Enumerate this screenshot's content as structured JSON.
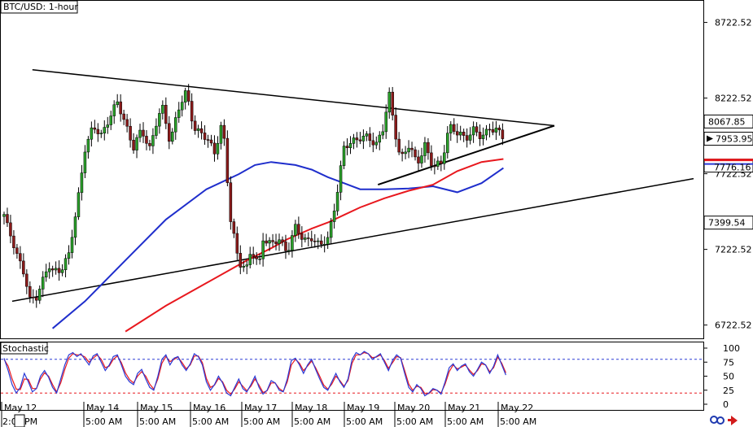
{
  "chart_data": {
    "type": "line",
    "title": "BTC/USD: 1-hour",
    "indicator_label": "Stochastic",
    "price_axis": {
      "ticks": [
        6722.52,
        7222.52,
        7722.52,
        8222.52,
        8722.52
      ],
      "range": [
        6640,
        8860
      ]
    },
    "price_badges": [
      {
        "value": "8067.85",
        "style": "white"
      },
      {
        "value": "7953.95",
        "style": "current"
      },
      {
        "value": "7776.16",
        "style": "red"
      },
      {
        "value": "7399.54",
        "style": "white"
      }
    ],
    "stoch_axis": {
      "ticks": [
        100,
        75,
        50,
        25,
        0
      ],
      "levels": [
        80,
        20
      ]
    },
    "x_labels": {
      "dates": [
        "May 12",
        "May 14",
        "May 15",
        "May 16",
        "May 17",
        "May 18",
        "May 19",
        "May 20",
        "May 21",
        "May 22"
      ],
      "times": [
        "2:0",
        "PM",
        "5:00 AM",
        "5:00 AM",
        "5:00 AM",
        "5:00 AM",
        "5:00 AM",
        "5:00 AM",
        "5:00 AM",
        "5:00 AM",
        "5:00 AM"
      ]
    },
    "series": [
      {
        "name": "",
        "kind": "close",
        "t": [
          0,
          5,
          10,
          17,
          25,
          32,
          40,
          45,
          50,
          55,
          60,
          70,
          80,
          90,
          100,
          110,
          120,
          130,
          140,
          150,
          160,
          170,
          180,
          190,
          196,
          205,
          215,
          225,
          235,
          245,
          250,
          260,
          270,
          280,
          290,
          300,
          305,
          310,
          315,
          320,
          330,
          340,
          350,
          360,
          370,
          380,
          390,
          400,
          410,
          420,
          430,
          440,
          450,
          460,
          470,
          475,
          480,
          485,
          490,
          500,
          510,
          520,
          530,
          540,
          550,
          560,
          570,
          580,
          590,
          600,
          610,
          617
        ],
        "price": [
          7440,
          7350,
          7300,
          7180,
          7050,
          6880,
          6920,
          6990,
          7040,
          7110,
          7070,
          7100,
          7180,
          7500,
          7900,
          8020,
          7980,
          8100,
          8180,
          8060,
          7900,
          8000,
          7900,
          8100,
          8140,
          7940,
          8150,
          8250,
          8030,
          7990,
          7940,
          7870,
          8080,
          7400,
          7150,
          7100,
          7210,
          7160,
          7110,
          7310,
          7250,
          7280,
          7220,
          7360,
          7280,
          7310,
          7230,
          7300,
          7550,
          7880,
          7950,
          7960,
          7950,
          7930,
          8040,
          8260,
          8100,
          7950,
          7830,
          7900,
          7790,
          7920,
          7750,
          7800,
          8040,
          7980,
          7970,
          8010,
          7950,
          8040,
          8000,
          7953
        ]
      },
      {
        "name": "",
        "kind": "ma100",
        "color": "#1f2ecc",
        "t": [
          60,
          100,
          150,
          200,
          250,
          290,
          310,
          330,
          360,
          380,
          400,
          420,
          440,
          470,
          500,
          530,
          560,
          590,
          617
        ],
        "price": [
          6700,
          6880,
          7150,
          7420,
          7620,
          7720,
          7780,
          7800,
          7780,
          7750,
          7700,
          7660,
          7620,
          7620,
          7625,
          7640,
          7600,
          7660,
          7760
        ]
      },
      {
        "name": "",
        "kind": "ma200",
        "color": "#e8181e",
        "t": [
          150,
          200,
          250,
          300,
          330,
          350,
          380,
          400,
          420,
          440,
          470,
          500,
          530,
          560,
          590,
          617
        ],
        "price": [
          6680,
          6850,
          7000,
          7150,
          7230,
          7290,
          7360,
          7400,
          7450,
          7500,
          7560,
          7610,
          7650,
          7740,
          7800,
          7820
        ]
      }
    ],
    "stochastic": {
      "t": [
        0,
        5,
        10,
        15,
        20,
        25,
        30,
        35,
        40,
        45,
        50,
        55,
        60,
        65,
        70,
        75,
        80,
        85,
        90,
        95,
        100,
        105,
        110,
        115,
        120,
        125,
        130,
        135,
        140,
        145,
        150,
        155,
        160,
        165,
        170,
        175,
        180,
        185,
        190,
        195,
        200,
        205,
        210,
        215,
        220,
        225,
        230,
        235,
        240,
        245,
        250,
        255,
        260,
        265,
        270,
        275,
        280,
        285,
        290,
        295,
        300,
        305,
        310,
        315,
        320,
        325,
        330,
        335,
        340,
        345,
        350,
        355,
        360,
        365,
        370,
        375,
        380,
        385,
        390,
        395,
        400,
        405,
        410,
        415,
        420,
        425,
        430,
        435,
        440,
        445,
        450,
        455,
        460,
        465,
        470,
        475,
        480,
        485,
        490,
        495,
        500,
        505,
        510,
        515,
        520,
        525,
        530,
        535,
        540,
        545,
        550,
        555,
        560,
        565,
        570,
        575,
        580,
        585,
        590,
        595,
        600,
        605,
        610,
        615,
        620
      ],
      "k": [
        82,
        60,
        35,
        20,
        30,
        55,
        40,
        22,
        28,
        50,
        60,
        48,
        30,
        20,
        45,
        70,
        88,
        92,
        85,
        90,
        80,
        70,
        86,
        90,
        75,
        60,
        70,
        85,
        88,
        70,
        50,
        40,
        35,
        55,
        62,
        45,
        30,
        25,
        50,
        80,
        88,
        70,
        82,
        85,
        70,
        60,
        72,
        90,
        85,
        70,
        40,
        25,
        35,
        50,
        38,
        20,
        15,
        30,
        45,
        28,
        22,
        35,
        50,
        30,
        18,
        25,
        42,
        38,
        25,
        22,
        45,
        78,
        82,
        70,
        55,
        70,
        80,
        62,
        45,
        30,
        25,
        40,
        55,
        40,
        30,
        45,
        80,
        92,
        88,
        94,
        90,
        80,
        85,
        90,
        75,
        60,
        78,
        88,
        82,
        55,
        30,
        22,
        35,
        28,
        15,
        20,
        28,
        25,
        18,
        40,
        65,
        72,
        60,
        68,
        72,
        58,
        50,
        62,
        75,
        70,
        55,
        68,
        88,
        70,
        52
      ],
      "d": [
        80,
        68,
        45,
        27,
        26,
        45,
        44,
        28,
        28,
        45,
        56,
        50,
        35,
        22,
        38,
        62,
        82,
        90,
        88,
        88,
        84,
        75,
        82,
        88,
        80,
        65,
        68,
        80,
        86,
        74,
        56,
        44,
        38,
        50,
        58,
        50,
        36,
        27,
        45,
        73,
        85,
        76,
        80,
        84,
        74,
        63,
        70,
        86,
        86,
        74,
        46,
        30,
        34,
        46,
        40,
        25,
        18,
        27,
        40,
        32,
        24,
        32,
        45,
        34,
        21,
        24,
        38,
        38,
        28,
        23,
        40,
        70,
        80,
        73,
        60,
        68,
        77,
        65,
        50,
        34,
        27,
        36,
        50,
        42,
        32,
        42,
        73,
        88,
        88,
        92,
        90,
        83,
        84,
        88,
        78,
        64,
        74,
        85,
        83,
        60,
        36,
        25,
        32,
        30,
        19,
        19,
        26,
        25,
        20,
        36,
        58,
        70,
        63,
        66,
        70,
        61,
        53,
        60,
        72,
        70,
        58,
        65,
        84,
        73,
        56
      ]
    },
    "trendlines": [
      {
        "name": "",
        "t": [
          35,
          680
        ],
        "price": [
          8410,
          8040
        ],
        "stroke": 1.5
      },
      {
        "name": "",
        "t": [
          10,
          852
        ],
        "price": [
          6880,
          7690
        ],
        "stroke": 1.5
      },
      {
        "name": "",
        "t": [
          462,
          680
        ],
        "price": [
          7650,
          8040
        ],
        "stroke": 2
      }
    ],
    "colors": {
      "bull": "#2aa02a",
      "bear": "#8b1a1a",
      "k": "#2a3ad6",
      "d": "#e8181e",
      "grid": "#000000"
    }
  }
}
